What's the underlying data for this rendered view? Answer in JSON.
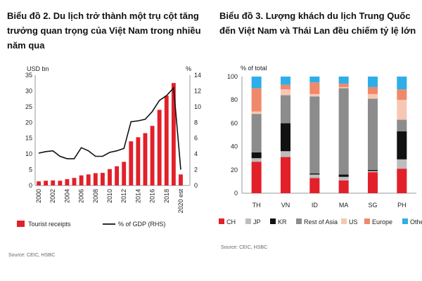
{
  "chart_data": [
    {
      "type": "bar+line",
      "title": "Biểu đồ 2. Du lịch trở thành một trụ cột tăng trưởng quan trọng của Việt Nam trong nhiều năm qua",
      "y_left_label": "USD bn",
      "y_right_label": "%",
      "ylim_left": [
        0,
        35
      ],
      "ylim_right": [
        0,
        14
      ],
      "y_left_ticks": [
        0,
        5,
        10,
        15,
        20,
        25,
        30,
        35
      ],
      "y_right_ticks": [
        0,
        2,
        4,
        6,
        8,
        10,
        12,
        14
      ],
      "x": [
        "2000",
        "2001",
        "2002",
        "2003",
        "2004",
        "2005",
        "2006",
        "2007",
        "2008",
        "2009",
        "2010",
        "2011",
        "2012",
        "2013",
        "2014",
        "2015",
        "2016",
        "2017",
        "2018",
        "2019",
        "2020 est"
      ],
      "x_tick_labels": [
        "2000",
        "",
        "2002",
        "",
        "2004",
        "",
        "2006",
        "",
        "2008",
        "",
        "2010",
        "",
        "2012",
        "",
        "2014",
        "",
        "2016",
        "",
        "2018",
        "",
        "2020 est"
      ],
      "series": [
        {
          "name": "Tourist receipts",
          "type": "bar",
          "axis": "left",
          "color": "#e2202a",
          "values": [
            1.3,
            1.5,
            1.6,
            1.5,
            2.0,
            2.4,
            3.2,
            3.5,
            3.9,
            4.0,
            5.2,
            6.1,
            7.5,
            14.0,
            15.3,
            16.6,
            18.9,
            24.0,
            28.5,
            32.5,
            3.5
          ]
        },
        {
          "name": "% of GDP (RHS)",
          "type": "line",
          "axis": "right",
          "color": "#111111",
          "values": [
            4.1,
            4.3,
            4.4,
            3.7,
            3.4,
            3.4,
            4.8,
            4.4,
            3.7,
            3.7,
            4.2,
            4.4,
            4.7,
            8.1,
            8.2,
            8.4,
            9.4,
            10.8,
            11.4,
            12.4,
            2.0
          ]
        }
      ],
      "legend": [
        "Tourist receipts",
        "% of GDP (RHS)"
      ],
      "source": "Source: CEIC, HSBC"
    },
    {
      "type": "stacked-bar",
      "title": "Biểu đồ 3. Lượng khách du lịch Trung Quốc đến Việt Nam và Thái Lan đều chiếm tỷ lệ lớn",
      "ylabel": "% of total",
      "ylim": [
        0,
        100
      ],
      "y_ticks": [
        0,
        20,
        40,
        60,
        80,
        100
      ],
      "categories": [
        "TH",
        "VN",
        "ID",
        "MA",
        "SG",
        "PH"
      ],
      "series": [
        {
          "name": "CH",
          "color": "#e2202a",
          "values": [
            27,
            31,
            13,
            11,
            18,
            21
          ]
        },
        {
          "name": "JP",
          "color": "#bdbdbd",
          "values": [
            3,
            5,
            3,
            3,
            1,
            8
          ]
        },
        {
          "name": "KR",
          "color": "#111111",
          "values": [
            5,
            24,
            1,
            2,
            1,
            24
          ]
        },
        {
          "name": "Rest of Asia",
          "color": "#8c8c8c",
          "values": [
            33,
            24,
            66,
            74,
            61,
            10
          ]
        },
        {
          "name": "US",
          "color": "#f6c8b4",
          "values": [
            2,
            5,
            2,
            1,
            4,
            17
          ]
        },
        {
          "name": "Europe",
          "color": "#f0896a",
          "values": [
            20,
            4,
            10,
            3,
            6,
            9
          ]
        },
        {
          "name": "Others",
          "color": "#2eaee8",
          "values": [
            10,
            7,
            5,
            6,
            9,
            11
          ]
        }
      ],
      "legend": [
        "CH",
        "JP",
        "KR",
        "Rest of Asia",
        "US",
        "Europe",
        "Others"
      ],
      "source": "Source: CEIC, HSBC"
    }
  ]
}
